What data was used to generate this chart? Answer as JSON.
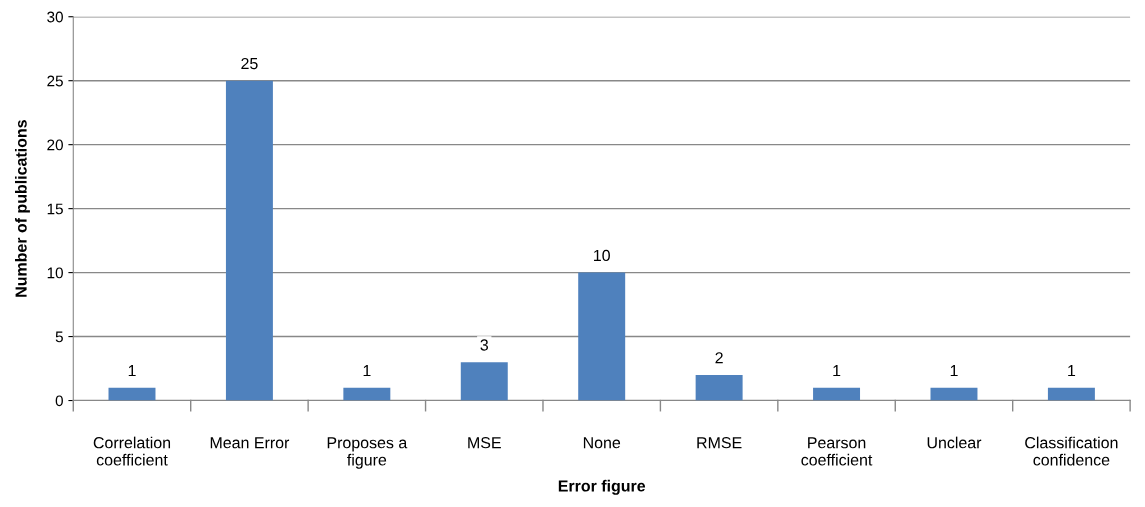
{
  "chart_data": {
    "type": "bar",
    "xlabel": "Error figure",
    "ylabel": "Number of publications",
    "categories": [
      "Correlation coefficient",
      "Mean Error",
      "Proposes a figure",
      "MSE",
      "None",
      "RMSE",
      "Pearson coefficient",
      "Unclear",
      "Classification confidence"
    ],
    "values": [
      1,
      25,
      1,
      3,
      10,
      2,
      1,
      1,
      1
    ],
    "color": "#4f81bd",
    "ylim": [
      0,
      30
    ],
    "yticks": [
      0,
      5,
      10,
      15,
      20,
      25,
      30
    ],
    "grid": "y",
    "data_labels": true
  }
}
